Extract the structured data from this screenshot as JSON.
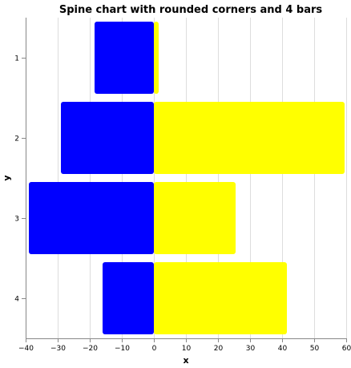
{
  "chart_data": {
    "type": "bar",
    "orientation": "horizontal",
    "title": "Spine chart with rounded corners and 4 bars",
    "xlabel": "x",
    "ylabel": "y",
    "categories": [
      "1",
      "2",
      "3",
      "4"
    ],
    "series": [
      {
        "color": "#0000ff",
        "values": [
          -18.5,
          -29,
          -39,
          -16
        ]
      },
      {
        "color": "#ffff00",
        "values": [
          1.5,
          59.5,
          25.5,
          41.5
        ]
      }
    ],
    "xlim": [
      -40,
      60
    ],
    "xticks": [
      -40,
      -30,
      -20,
      -10,
      0,
      10,
      20,
      30,
      40,
      50,
      60
    ],
    "grid": true,
    "legend": "none"
  }
}
